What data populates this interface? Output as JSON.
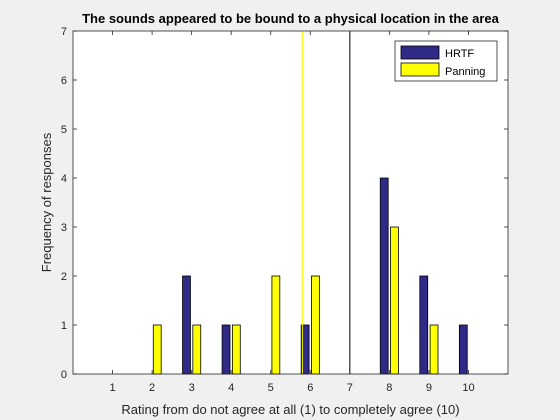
{
  "chart_data": {
    "type": "bar",
    "title": "The sounds appeared to be bound to a physical location in the area",
    "xlabel": "Rating from do not agree at all (1) to completely agree (10)",
    "ylabel": "Frequency of responses",
    "categories": [
      1,
      2,
      3,
      4,
      5,
      6,
      7,
      8,
      9,
      10
    ],
    "xlim": [
      0,
      11
    ],
    "ylim": [
      0,
      7
    ],
    "yticks": [
      0,
      1,
      2,
      3,
      4,
      5,
      6,
      7
    ],
    "grid": false,
    "legend_position": "top-right",
    "series": [
      {
        "name": "HRTF",
        "color": "#2e2a86",
        "values": [
          0,
          0,
          2,
          1,
          0,
          1,
          0,
          4,
          2,
          1
        ]
      },
      {
        "name": "Panning",
        "color": "#ffff00",
        "values": [
          0,
          1,
          1,
          1,
          2,
          2,
          0,
          3,
          1,
          0
        ]
      }
    ],
    "reference_lines": [
      {
        "x": 5.8,
        "color": "#ffff00"
      },
      {
        "x": 7.0,
        "color": "#000000"
      }
    ]
  }
}
